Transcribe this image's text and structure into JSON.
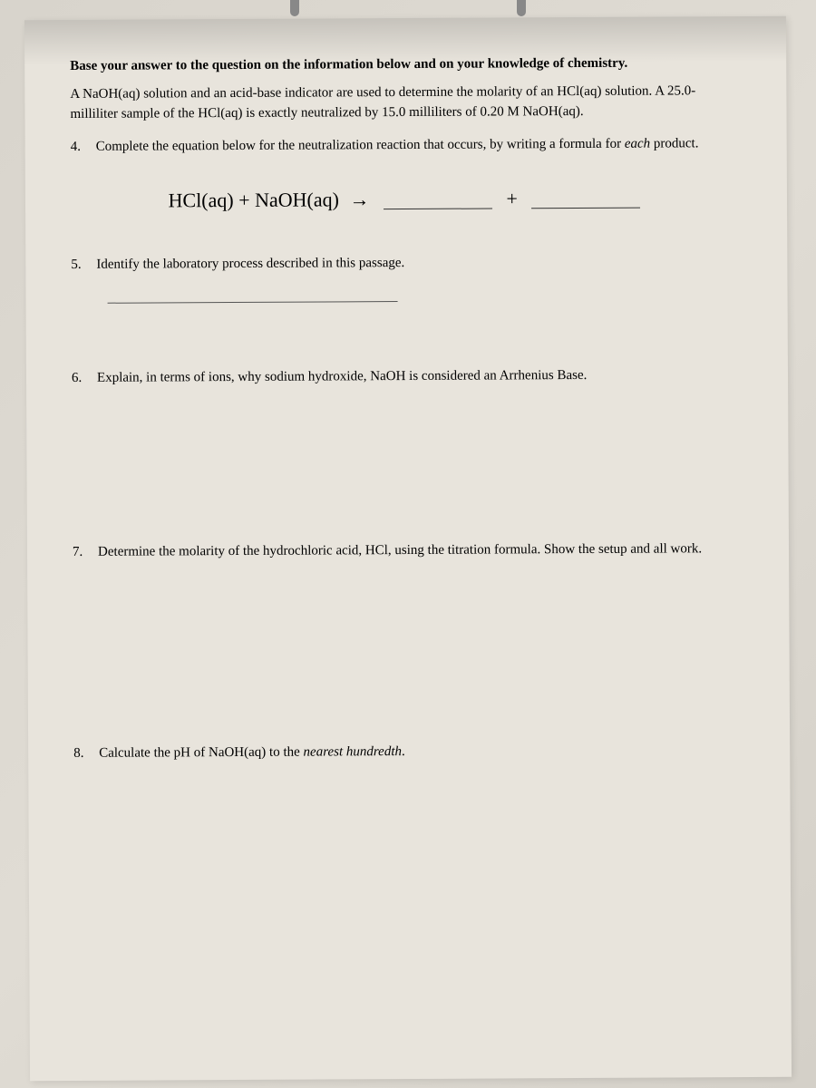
{
  "colors": {
    "paper_bg": "#e8e4dc",
    "body_bg": "#d8d4cc",
    "text": "#1a1a1a",
    "line": "#333333"
  },
  "intro": {
    "bold_line": "Base your answer to the question on the information below and on your knowledge of chemistry.",
    "paragraph": "A NaOH(aq) solution and an acid-base indicator are used to determine the molarity of an HCl(aq) solution. A 25.0-milliliter sample of the HCl(aq) is exactly neutralized by 15.0 milliliters of 0.20 M NaOH(aq)."
  },
  "questions": {
    "q4": {
      "num": "4.",
      "text_before": "Complete the equation below for the neutralization reaction that occurs, by writing a formula for ",
      "italic_word": "each",
      "text_after": " product."
    },
    "q5": {
      "num": "5.",
      "text": "Identify the laboratory process described in this passage."
    },
    "q6": {
      "num": "6.",
      "text": "Explain, in terms of ions, why sodium hydroxide, NaOH is considered an Arrhenius Base."
    },
    "q7": {
      "num": "7.",
      "text": "Determine the molarity of the hydrochloric acid, HCl, using the titration formula. Show the setup and all work."
    },
    "q8": {
      "num": "8.",
      "text_before": "Calculate the pH of NaOH(aq) to the ",
      "italic_word": "nearest hundredth",
      "text_after": "."
    }
  },
  "equation": {
    "lhs": "HCl(aq) + NaOH(aq)",
    "arrow": "→",
    "plus": "+"
  }
}
